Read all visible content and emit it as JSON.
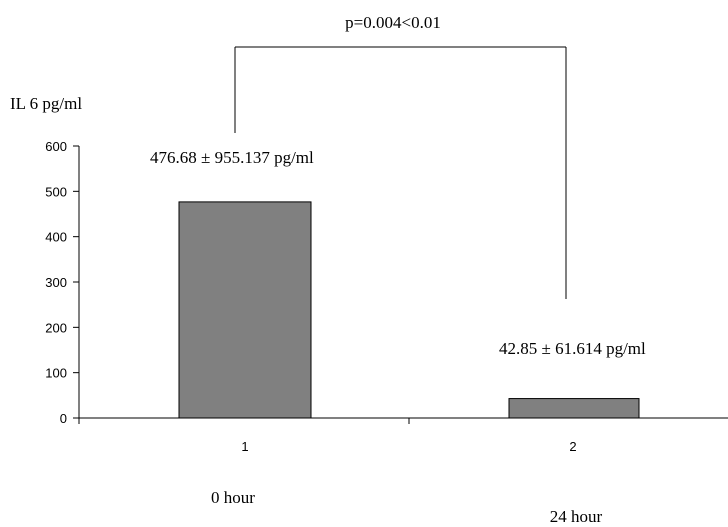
{
  "chart_data": {
    "type": "bar",
    "ylabel": "IL 6 pg/ml",
    "ylim": [
      0,
      600
    ],
    "yticks": [
      "0",
      "100",
      "200",
      "300",
      "400",
      "500",
      "600"
    ],
    "categories": [
      "1",
      "2"
    ],
    "values": [
      476.68,
      42.85
    ],
    "bar_color": "#808080",
    "grid": false,
    "value_annotations": [
      "476.68 ± 955.137 pg/ml",
      "42.85 ± 61.614  pg/ml"
    ],
    "category_labels": [
      "0 hour",
      "24 hour"
    ],
    "significance": "p=0.004<0.01"
  }
}
